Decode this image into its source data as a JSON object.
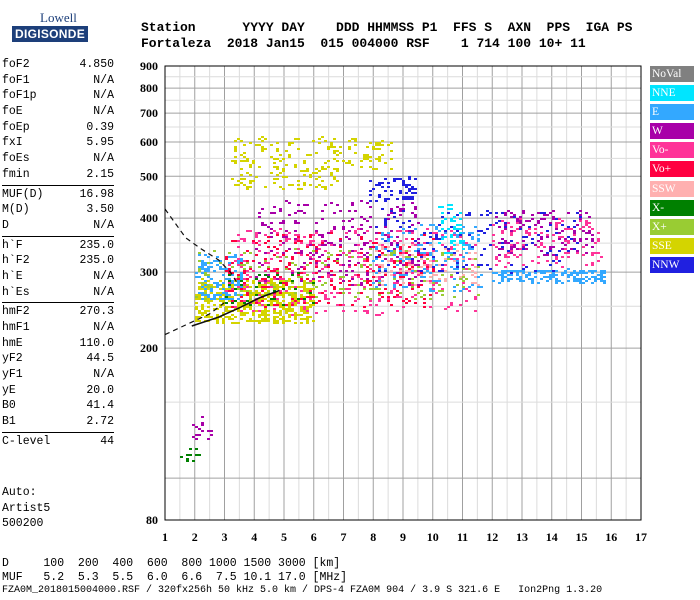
{
  "logo": {
    "line1": "Lowell",
    "line2": "DIGISONDE"
  },
  "header": {
    "row1": "Station      YYYY DAY    DDD HHMMSS P1  FFS S  AXN  PPS  IGA PS",
    "row2": "Fortaleza  2018 Jan15  015 004000 RSF    1 714 100 10+ 11"
  },
  "params": [
    [
      {
        "label": "foF2",
        "value": "4.850"
      },
      {
        "label": "foF1",
        "value": "N/A"
      },
      {
        "label": "foF1p",
        "value": "N/A"
      },
      {
        "label": "foE",
        "value": "N/A"
      },
      {
        "label": "foEp",
        "value": "0.39"
      },
      {
        "label": "fxI",
        "value": "5.95"
      },
      {
        "label": "foEs",
        "value": "N/A"
      },
      {
        "label": "fmin",
        "value": "2.15"
      }
    ],
    [
      {
        "label": "MUF(D)",
        "value": "16.98"
      },
      {
        "label": "M(D)",
        "value": "3.50"
      },
      {
        "label": "D",
        "value": "N/A"
      }
    ],
    [
      {
        "label": "h`F",
        "value": "235.0"
      },
      {
        "label": "h`F2",
        "value": "235.0"
      },
      {
        "label": "h`E",
        "value": "N/A"
      },
      {
        "label": "h`Es",
        "value": "N/A"
      }
    ],
    [
      {
        "label": "hmF2",
        "value": "270.3"
      },
      {
        "label": "hmF1",
        "value": "N/A"
      },
      {
        "label": "hmE",
        "value": "110.0"
      },
      {
        "label": "yF2",
        "value": "44.5"
      },
      {
        "label": "yF1",
        "value": "N/A"
      },
      {
        "label": "yE",
        "value": "20.0"
      },
      {
        "label": "B0",
        "value": "41.4"
      },
      {
        "label": "B1",
        "value": "2.72"
      }
    ],
    [
      {
        "label": "C-level",
        "value": "44"
      }
    ]
  ],
  "autoscale": {
    "line1": "Auto:",
    "line2": "Artist5",
    "line3": "500200"
  },
  "legend": [
    {
      "label": "NoVal",
      "color": "#808080"
    },
    {
      "label": "NNE",
      "color": "#00e5ff"
    },
    {
      "label": "E",
      "color": "#33a8ff"
    },
    {
      "label": "W",
      "color": "#a800a8"
    },
    {
      "label": "Vo-",
      "color": "#ff3399"
    },
    {
      "label": "Vo+",
      "color": "#ff0040"
    },
    {
      "label": "SSW",
      "color": "#ffb0b0"
    },
    {
      "label": "X-",
      "color": "#008000"
    },
    {
      "label": "X+",
      "color": "#99cc33"
    },
    {
      "label": "SSE",
      "color": "#d4d400"
    },
    {
      "label": "NNW",
      "color": "#2020e0"
    }
  ],
  "footer": {
    "line1": "D     100  200  400  600  800 1000 1500 3000 [km]",
    "line2": "MUF   5.2  5.3  5.5  6.0  6.6  7.5 10.1 17.0 [MHz]",
    "line3": "FZA0M_2018015004000.RSF / 320fx256h 50 kHz 5.0 km / DPS-4 FZA0M 904 / 3.9 S 321.6 E   Ion2Png 1.3.20"
  },
  "chart_data": {
    "type": "scatter",
    "x_ticks": [
      "1",
      "2",
      "3",
      "4",
      "5",
      "6",
      "7",
      "8",
      "9",
      "10",
      "11",
      "12",
      "13",
      "14",
      "15",
      "16",
      "17"
    ],
    "y_ticks": [
      "80",
      "200",
      "300",
      "400",
      "500",
      "600",
      "700",
      "800",
      "900"
    ],
    "xlim": [
      1,
      17
    ],
    "y_scale": "log",
    "ylim": [
      80,
      900
    ],
    "grid": true,
    "echo_regions": [
      {
        "color": "#d4d400",
        "x": [
          2.0,
          6.0
        ],
        "y": [
          230,
          290
        ],
        "n": 520
      },
      {
        "color": "#d4d400",
        "x": [
          3.2,
          6.8
        ],
        "y": [
          470,
          620
        ],
        "n": 170
      },
      {
        "color": "#d4d400",
        "x": [
          6.6,
          8.6
        ],
        "y": [
          520,
          620
        ],
        "n": 60
      },
      {
        "color": "#33a8ff",
        "x": [
          2.0,
          3.6
        ],
        "y": [
          260,
          330
        ],
        "n": 140
      },
      {
        "color": "#33a8ff",
        "x": [
          8.0,
          11.6
        ],
        "y": [
          270,
          390
        ],
        "n": 160
      },
      {
        "color": "#33a8ff",
        "x": [
          12.0,
          15.8
        ],
        "y": [
          285,
          305
        ],
        "n": 160
      },
      {
        "color": "#a800a8",
        "x": [
          4.0,
          9.6
        ],
        "y": [
          280,
          440
        ],
        "n": 260
      },
      {
        "color": "#a800a8",
        "x": [
          12.0,
          15.4
        ],
        "y": [
          330,
          420
        ],
        "n": 120
      },
      {
        "color": "#ff3399",
        "x": [
          3.0,
          11.4
        ],
        "y": [
          240,
          380
        ],
        "n": 330
      },
      {
        "color": "#ff3399",
        "x": [
          12.0,
          15.6
        ],
        "y": [
          310,
          400
        ],
        "n": 120
      },
      {
        "color": "#ff0040",
        "x": [
          3.0,
          10.0
        ],
        "y": [
          250,
          370
        ],
        "n": 240
      },
      {
        "color": "#2020e0",
        "x": [
          7.8,
          9.4
        ],
        "y": [
          440,
          500
        ],
        "n": 60
      },
      {
        "color": "#2020e0",
        "x": [
          8.0,
          15.0
        ],
        "y": [
          300,
          420
        ],
        "n": 140
      },
      {
        "color": "#00e5ff",
        "x": [
          10.2,
          11.0
        ],
        "y": [
          330,
          430
        ],
        "n": 45
      },
      {
        "color": "#99cc33",
        "x": [
          2.0,
          11.6
        ],
        "y": [
          260,
          340
        ],
        "n": 160
      },
      {
        "color": "#ffb0b0",
        "x": [
          8.0,
          11.5
        ],
        "y": [
          280,
          350
        ],
        "n": 80
      },
      {
        "color": "#008000",
        "x": [
          3.0,
          6.0
        ],
        "y": [
          250,
          300
        ],
        "n": 40
      },
      {
        "color": "#a800a8",
        "x": [
          1.9,
          2.5
        ],
        "y": [
          120,
          140
        ],
        "n": 18
      },
      {
        "color": "#008000",
        "x": [
          1.5,
          2.1
        ],
        "y": [
          110,
          118
        ],
        "n": 10
      }
    ],
    "profile_curves": [
      {
        "style": "dashed",
        "points": [
          [
            1.0,
            420
          ],
          [
            1.7,
            360
          ],
          [
            2.2,
            340
          ],
          [
            2.8,
            320
          ],
          [
            3.2,
            300
          ],
          [
            3.4,
            285
          ]
        ]
      },
      {
        "style": "dashed",
        "points": [
          [
            1.0,
            215
          ],
          [
            1.8,
            228
          ],
          [
            2.5,
            240
          ],
          [
            3.0,
            255
          ]
        ]
      },
      {
        "style": "solid",
        "points": [
          [
            1.9,
            225
          ],
          [
            2.8,
            236
          ],
          [
            3.5,
            248
          ],
          [
            4.2,
            262
          ],
          [
            4.85,
            272
          ]
        ]
      }
    ]
  }
}
